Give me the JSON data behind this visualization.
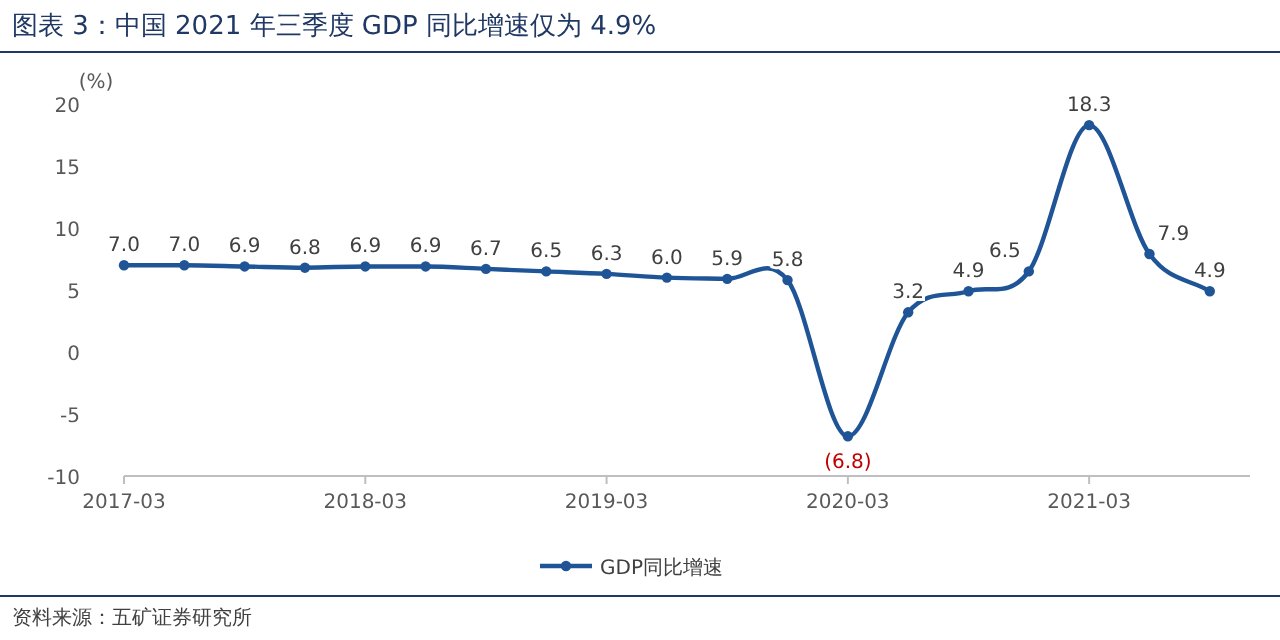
{
  "chart_data": {
    "type": "line",
    "title": "图表 3：中国 2021 年三季度 GDP 同比增速仅为 4.9%",
    "ylabel": "(%)",
    "annotations": [
      "资料来源：五矿证券研究所"
    ],
    "x": [
      "2017-03",
      "2017-06",
      "2017-09",
      "2017-12",
      "2018-03",
      "2018-06",
      "2018-09",
      "2018-12",
      "2019-03",
      "2019-06",
      "2019-09",
      "2019-12",
      "2020-03",
      "2020-06",
      "2020-09",
      "2020-12",
      "2021-03",
      "2021-06",
      "2021-09"
    ],
    "series": [
      {
        "name": "GDP同比增速",
        "color": "#1f5597",
        "values": [
          7.0,
          7.0,
          6.9,
          6.8,
          6.9,
          6.9,
          6.7,
          6.5,
          6.3,
          6.0,
          5.9,
          5.8,
          -6.8,
          3.2,
          4.9,
          6.5,
          18.3,
          7.9,
          4.9
        ],
        "value_labels": [
          "7.0",
          "7.0",
          "6.9",
          "6.8",
          "6.9",
          "6.9",
          "6.7",
          "6.5",
          "6.3",
          "6.0",
          "5.9",
          "5.8",
          "(6.8)",
          "3.2",
          "4.9",
          "6.5",
          "18.3",
          "7.9",
          "4.9"
        ]
      }
    ],
    "xlim": [
      "2017-03",
      "2021-11"
    ],
    "xticks": [
      "2017-03",
      "2018-03",
      "2019-03",
      "2020-03",
      "2021-03"
    ],
    "ylim": [
      -10,
      20
    ],
    "yticks": [
      -10,
      -5,
      0,
      5,
      10,
      15,
      20
    ],
    "legend": "bottom",
    "marker": "circle"
  }
}
